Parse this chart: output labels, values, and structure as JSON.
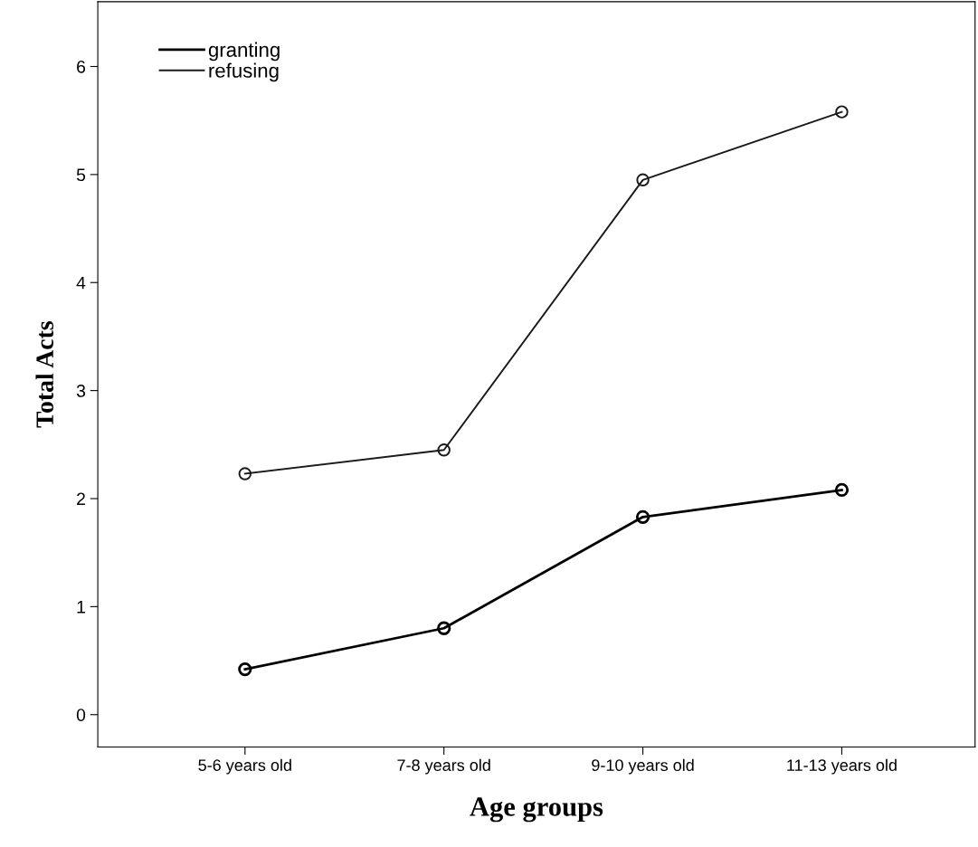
{
  "chart_data": {
    "type": "line",
    "xlabel": "Age groups",
    "ylabel": "Total Acts",
    "categories": [
      "5-6 years old",
      "7-8 years old",
      "9-10 years old",
      "11-13 years old"
    ],
    "series": [
      {
        "name": "granting",
        "color": "#000000",
        "values": [
          0.42,
          0.8,
          1.83,
          2.08
        ]
      },
      {
        "name": "refusing",
        "color": "#1a1a1a",
        "values": [
          2.23,
          2.45,
          4.95,
          5.58
        ]
      }
    ],
    "ylim": [
      -0.3,
      6.6
    ],
    "yticks": [
      0,
      1,
      2,
      3,
      4,
      5,
      6
    ],
    "marker": "circle",
    "line_style": "solid",
    "legend": "top left",
    "grid": false
  }
}
